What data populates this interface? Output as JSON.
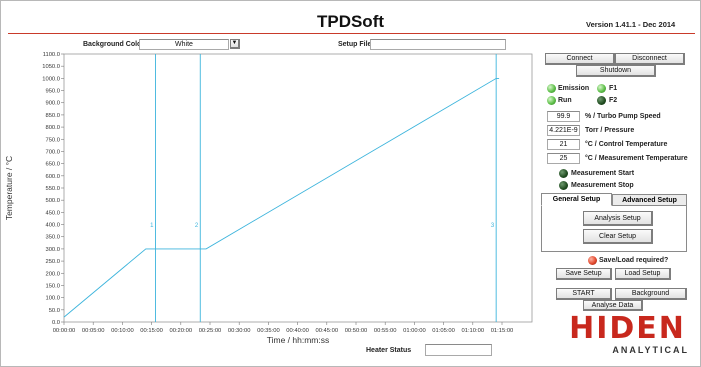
{
  "app": {
    "title": "TPDSoft",
    "version": "Version 1.41.1 - Dec 2014"
  },
  "top_controls": {
    "background_colour_label": "Background Colour",
    "background_colour_value": "White",
    "setup_file_label": "Setup File",
    "setup_file_value": ""
  },
  "buttons": {
    "connect": "Connect",
    "disconnect": "Disconnect",
    "shutdown": "Shutdown",
    "analysis_setup": "Analysis Setup",
    "clear_setup": "Clear Setup",
    "save_setup": "Save Setup",
    "load_setup": "Load Setup",
    "start": "START",
    "background": "Background",
    "analyse_data": "Analyse Data"
  },
  "indicators": {
    "emission": {
      "label": "Emission",
      "state": "on",
      "color": "#5fc04a"
    },
    "f1": {
      "label": "F1",
      "state": "on",
      "color": "#5fc04a"
    },
    "run": {
      "label": "Run",
      "state": "on",
      "color": "#5fc04a"
    },
    "f2": {
      "label": "F2",
      "state": "off",
      "color": "#1f4a1f"
    },
    "measurement_start": {
      "label": "Measurement Start",
      "state": "off",
      "color": "#1f4a1f"
    },
    "measurement_stop": {
      "label": "Measurement Stop",
      "state": "off",
      "color": "#1f4a1f"
    },
    "save_load_required": {
      "label": "Save/Load required?",
      "state": "on",
      "color": "#e24a2f"
    }
  },
  "readouts": [
    {
      "value": "99.9",
      "label": "% / Turbo Pump Speed"
    },
    {
      "value": "4.221E-9",
      "label": "Torr / Pressure"
    },
    {
      "value": "21",
      "label": "°C / Control Temperature"
    },
    {
      "value": "25",
      "label": "°C / Measurement Temperature"
    }
  ],
  "tabs": [
    {
      "label": "General Setup",
      "active": true
    },
    {
      "label": "Advanced Setup",
      "active": false
    }
  ],
  "heater_status": {
    "label": "Heater Status",
    "value": ""
  },
  "logo": {
    "text": "HIDEN",
    "subtitle": "ANALYTICAL",
    "color": "#c8281d"
  },
  "colors": {
    "accent_red": "#c93a2a",
    "plot_line": "#3cb4dc"
  },
  "chart_data": {
    "type": "line",
    "xlabel": "Time / hh:mm:ss",
    "ylabel": "Temperature / °C",
    "xlim": [
      0,
      4500
    ],
    "ylim": [
      0,
      1100
    ],
    "x_ticks": [
      {
        "v": 0,
        "label": "00:00:00"
      },
      {
        "v": 300,
        "label": "00:05:00"
      },
      {
        "v": 600,
        "label": "00:10:00"
      },
      {
        "v": 900,
        "label": "00:15:00"
      },
      {
        "v": 1200,
        "label": "00:20:00"
      },
      {
        "v": 1500,
        "label": "00:25:00"
      },
      {
        "v": 1800,
        "label": "00:30:00"
      },
      {
        "v": 2100,
        "label": "00:35:00"
      },
      {
        "v": 2400,
        "label": "00:40:00"
      },
      {
        "v": 2700,
        "label": "00:45:00"
      },
      {
        "v": 3000,
        "label": "00:50:00"
      },
      {
        "v": 3300,
        "label": "00:55:00"
      },
      {
        "v": 3600,
        "label": "01:00:00"
      },
      {
        "v": 3900,
        "label": "01:05:00"
      },
      {
        "v": 4200,
        "label": "01:10:00"
      },
      {
        "v": 4500,
        "label": "01:15:00"
      }
    ],
    "y_ticks": [
      {
        "v": 0,
        "label": "0.0"
      },
      {
        "v": 50,
        "label": "50.0"
      },
      {
        "v": 100,
        "label": "100.0"
      },
      {
        "v": 150,
        "label": "150.0"
      },
      {
        "v": 200,
        "label": "200.0"
      },
      {
        "v": 250,
        "label": "250.0"
      },
      {
        "v": 300,
        "label": "300.0"
      },
      {
        "v": 350,
        "label": "350.0"
      },
      {
        "v": 400,
        "label": "400.0"
      },
      {
        "v": 450,
        "label": "450.0"
      },
      {
        "v": 500,
        "label": "500.0"
      },
      {
        "v": 550,
        "label": "550.0"
      },
      {
        "v": 600,
        "label": "600.0"
      },
      {
        "v": 650,
        "label": "650.0"
      },
      {
        "v": 700,
        "label": "700.0"
      },
      {
        "v": 750,
        "label": "750.0"
      },
      {
        "v": 800,
        "label": "800.0"
      },
      {
        "v": 850,
        "label": "850.0"
      },
      {
        "v": 900,
        "label": "900.0"
      },
      {
        "v": 950,
        "label": "950.0"
      },
      {
        "v": 1000,
        "label": "1000.0"
      },
      {
        "v": 1050,
        "label": "1050.0"
      },
      {
        "v": 1100,
        "label": "1100.0"
      }
    ],
    "series": [
      {
        "x": [
          0,
          840,
          1460,
          4440,
          4470
        ],
        "y": [
          20,
          300,
          300,
          1000,
          1000
        ]
      }
    ],
    "markers": [
      {
        "x": 940,
        "label": "1"
      },
      {
        "x": 1400,
        "label": "2"
      },
      {
        "x": 4440,
        "label": "3"
      }
    ],
    "grid": false
  }
}
